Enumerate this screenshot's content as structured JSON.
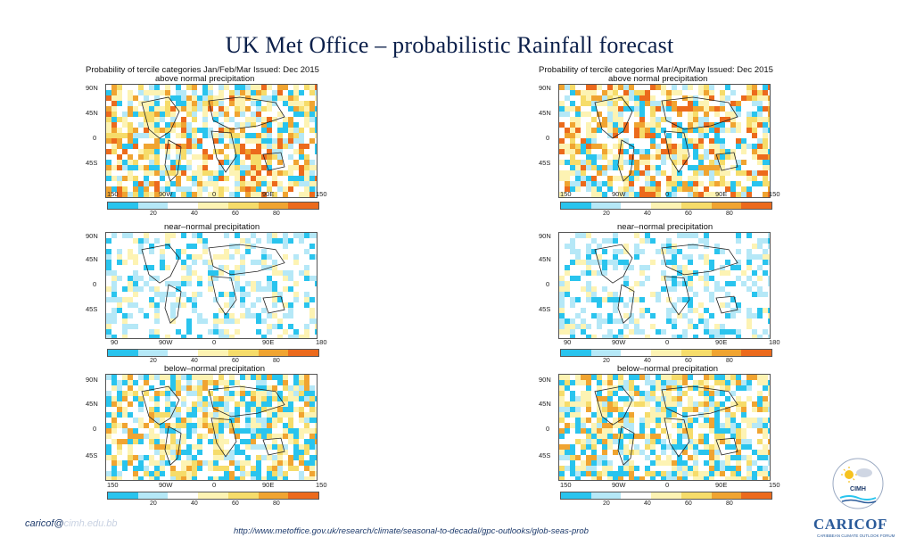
{
  "title": "UK Met Office –  probabilistic Rainfall  forecast",
  "left_panel": {
    "header_line1": "Probability of tercile categories Jan/Feb/Mar Issued: Dec 2015",
    "header_line2": "above  normal  precipitation",
    "sub_near": "near–normal precipitation",
    "sub_below": "below–normal precipitation"
  },
  "right_panel": {
    "header_line1": "Probability of tercile categories Mar/Apr/May Issued: Dec 2015",
    "header_line2": "above  normal  precipitation",
    "sub_near": "near–normal precipitation",
    "sub_below": "below–normal precipitation"
  },
  "lat_labels": [
    "90N",
    "45N",
    "0",
    "45S"
  ],
  "lat_labels_lower": [
    "90N",
    "45N",
    "0",
    "45S"
  ],
  "lon_labels": [
    "150",
    "90W",
    "0",
    "90E",
    "150"
  ],
  "lon_labels_near": [
    "90",
    "90W",
    "0",
    "90E",
    "180"
  ],
  "colorbar_ticks": [
    "20",
    "40",
    "60",
    "80"
  ],
  "colorbar_ticks_near": [
    "20",
    "40",
    "60",
    "80"
  ],
  "colors": {
    "cyan": "#29c4ee",
    "light_blue": "#b5e8f7",
    "white": "#ffffff",
    "pale_yellow": "#fdf3b3",
    "yellow": "#f6dc6a",
    "orange": "#f0a431",
    "dark_orange": "#ec6a1c",
    "title_navy": "#0b1f4a"
  },
  "footer": {
    "email": "caricof@",
    "email_obscured": "cimh.edu.bb",
    "url": "http://www.metoffice.gov.uk/research/climate/seasonal-to-decadal/gpc-outlooks/glob-seas-prob"
  },
  "logo": {
    "cimh_text": "CIMH",
    "caricof_text": "CARICOF",
    "caricof_sub": "CARIBBEAN CLIMATE OUTLOOK FORUM"
  }
}
